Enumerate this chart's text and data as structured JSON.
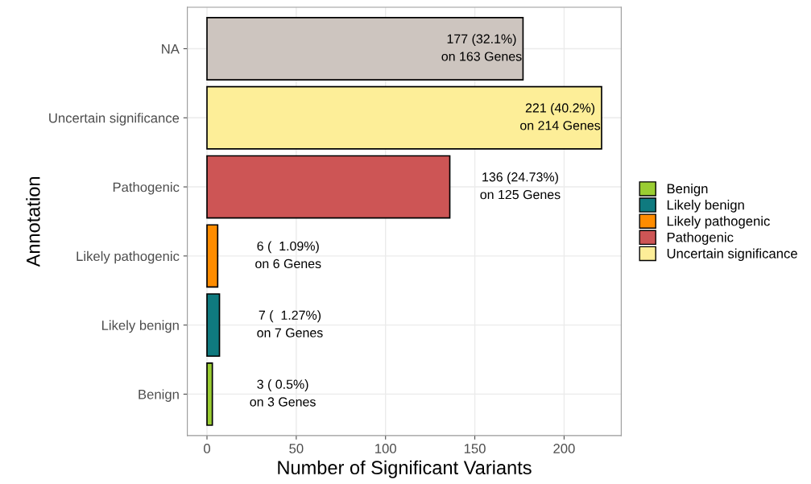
{
  "chart_data": {
    "type": "bar",
    "orientation": "horizontal",
    "xlabel": "Number of Significant Variants",
    "ylabel": "Annotation",
    "categories": [
      "NA",
      "Uncertain significance",
      "Pathogenic",
      "Likely pathogenic",
      "Likely benign",
      "Benign"
    ],
    "series": [
      {
        "name": "Benign",
        "color": "#9acd32",
        "values": [
          null,
          null,
          null,
          null,
          null,
          3
        ],
        "value_labels": [
          null,
          null,
          null,
          null,
          null,
          "3 ( 0.5%)\non 3 Genes"
        ]
      },
      {
        "name": "Likely benign",
        "color": "#0f7a7f",
        "values": [
          null,
          null,
          null,
          null,
          7,
          null
        ],
        "value_labels": [
          null,
          null,
          null,
          null,
          "7 (  1.27%)\non 7 Genes",
          null
        ]
      },
      {
        "name": "Likely pathogenic",
        "color": "#ff8c00",
        "values": [
          null,
          null,
          null,
          6,
          null,
          null
        ],
        "value_labels": [
          null,
          null,
          null,
          "6 (  1.09%)\non 6 Genes",
          null,
          null
        ]
      },
      {
        "name": "Pathogenic",
        "color": "#cd5555",
        "values": [
          null,
          null,
          136,
          null,
          null,
          null
        ],
        "value_labels": [
          null,
          null,
          "136 (24.73%)\non 125 Genes",
          null,
          null,
          null
        ]
      },
      {
        "name": "Uncertain significance",
        "color": "#fdee98",
        "values": [
          null,
          221,
          null,
          null,
          null,
          null
        ],
        "value_labels": [
          null,
          "221 (40.2%)\non 214 Genes",
          null,
          null,
          null,
          null
        ]
      },
      {
        "color": "#cdc5bf",
        "values": [
          177,
          null,
          null,
          null,
          null,
          null
        ],
        "value_labels": [
          "177 (32.1%)\non 163 Genes",
          null,
          null,
          null,
          null,
          null
        ]
      }
    ],
    "xlim": [
      -11,
      232
    ],
    "xticks": [
      0,
      50,
      100,
      150,
      200
    ],
    "grid": true,
    "legend": "right"
  }
}
